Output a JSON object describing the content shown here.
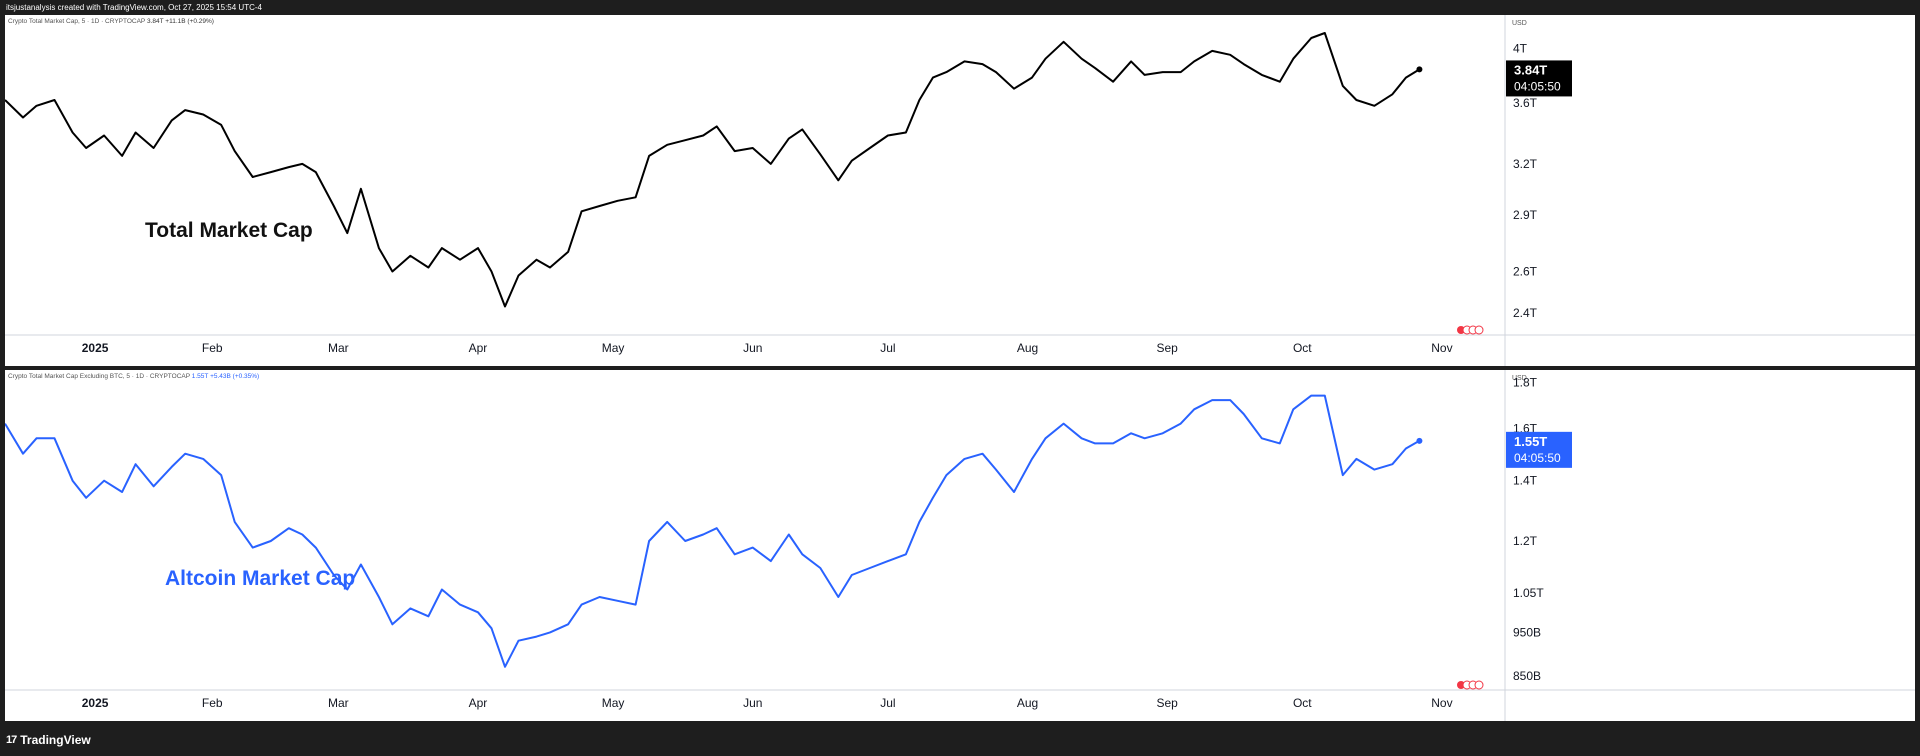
{
  "header": {
    "credit": "itsjustanalysis created with TradingView.com, Oct 27, 2025 15:54 UTC-4"
  },
  "footer": {
    "brand": "TradingView",
    "logo_icon": "tradingview-logo-icon"
  },
  "currency": "USD",
  "x_axis_labels": [
    "2025",
    "Feb",
    "Mar",
    "Apr",
    "May",
    "Jun",
    "Jul",
    "Aug",
    "Sep",
    "Oct",
    "Nov"
  ],
  "chart_data": [
    {
      "type": "line",
      "legend": "Crypto Total Market Cap, 5 · 1D · CRYPTOCAP",
      "legend_values": "3.84T +11.1B (+0.29%)",
      "annotation": "Total Market Cap",
      "line_color": "#000000",
      "price_label": "3.84T",
      "countdown": "04:05:50",
      "y_tick_labels": [
        "4T",
        "3.6T",
        "3.2T",
        "2.9T",
        "2.6T",
        "2.4T"
      ],
      "y_tick_values": [
        4.0,
        3.6,
        3.2,
        2.9,
        2.6,
        2.4
      ],
      "y_scale": "log",
      "ylim": [
        2.3,
        4.2
      ],
      "series": [
        {
          "x": [
            "2024-12-17",
            "2024-12-21",
            "2024-12-24",
            "2024-12-28",
            "2025-01-01",
            "2025-01-04",
            "2025-01-08",
            "2025-01-12",
            "2025-01-15",
            "2025-01-19",
            "2025-01-23",
            "2025-01-26",
            "2025-01-30",
            "2025-02-03",
            "2025-02-06",
            "2025-02-10",
            "2025-02-14",
            "2025-02-18",
            "2025-02-21",
            "2025-02-24",
            "2025-02-28",
            "2025-03-03",
            "2025-03-06",
            "2025-03-10",
            "2025-03-13",
            "2025-03-17",
            "2025-03-21",
            "2025-03-24",
            "2025-03-28",
            "2025-04-01",
            "2025-04-04",
            "2025-04-07",
            "2025-04-10",
            "2025-04-14",
            "2025-04-17",
            "2025-04-21",
            "2025-04-24",
            "2025-04-28",
            "2025-05-02",
            "2025-05-06",
            "2025-05-09",
            "2025-05-13",
            "2025-05-17",
            "2025-05-21",
            "2025-05-24",
            "2025-05-28",
            "2025-06-01",
            "2025-06-05",
            "2025-06-09",
            "2025-06-12",
            "2025-06-16",
            "2025-06-20",
            "2025-06-23",
            "2025-06-27",
            "2025-07-01",
            "2025-07-05",
            "2025-07-08",
            "2025-07-11",
            "2025-07-14",
            "2025-07-18",
            "2025-07-22",
            "2025-07-25",
            "2025-07-29",
            "2025-08-02",
            "2025-08-05",
            "2025-08-09",
            "2025-08-13",
            "2025-08-16",
            "2025-08-20",
            "2025-08-24",
            "2025-08-27",
            "2025-08-31",
            "2025-09-04",
            "2025-09-07",
            "2025-09-11",
            "2025-09-15",
            "2025-09-18",
            "2025-09-22",
            "2025-09-26",
            "2025-09-29",
            "2025-10-03",
            "2025-10-06",
            "2025-10-10",
            "2025-10-13",
            "2025-10-17",
            "2025-10-21",
            "2025-10-24",
            "2025-10-27"
          ],
          "values": [
            3.62,
            3.5,
            3.58,
            3.62,
            3.4,
            3.3,
            3.38,
            3.25,
            3.4,
            3.3,
            3.48,
            3.55,
            3.52,
            3.45,
            3.28,
            3.12,
            3.15,
            3.18,
            3.2,
            3.15,
            2.95,
            2.8,
            3.05,
            2.72,
            2.6,
            2.68,
            2.62,
            2.72,
            2.66,
            2.72,
            2.6,
            2.43,
            2.58,
            2.66,
            2.62,
            2.7,
            2.92,
            2.95,
            2.98,
            3.0,
            3.25,
            3.32,
            3.35,
            3.38,
            3.44,
            3.28,
            3.3,
            3.2,
            3.36,
            3.42,
            3.26,
            3.1,
            3.22,
            3.3,
            3.38,
            3.4,
            3.62,
            3.78,
            3.82,
            3.9,
            3.88,
            3.82,
            3.7,
            3.78,
            3.92,
            4.05,
            3.92,
            3.85,
            3.75,
            3.9,
            3.8,
            3.82,
            3.82,
            3.9,
            3.98,
            3.95,
            3.88,
            3.8,
            3.75,
            3.92,
            4.08,
            4.12,
            3.72,
            3.62,
            3.58,
            3.66,
            3.78,
            3.84
          ]
        }
      ]
    },
    {
      "type": "line",
      "legend": "Crypto Total Market Cap Excluding BTC, 5 · 1D · CRYPTOCAP",
      "legend_values": "1.55T +5.43B (+0.35%)",
      "annotation": "Altcoin Market Cap",
      "line_color": "#2962ff",
      "price_label": "1.55T",
      "countdown": "04:05:50",
      "y_tick_labels": [
        "1.8T",
        "1.6T",
        "1.4T",
        "1.2T",
        "1.05T",
        "950B",
        "850B"
      ],
      "y_tick_values": [
        1.8,
        1.6,
        1.4,
        1.2,
        1.05,
        0.95,
        0.85
      ],
      "y_scale": "log",
      "ylim": [
        0.82,
        1.82
      ],
      "series": [
        {
          "x": [
            "2024-12-17",
            "2024-12-21",
            "2024-12-24",
            "2024-12-28",
            "2025-01-01",
            "2025-01-04",
            "2025-01-08",
            "2025-01-12",
            "2025-01-15",
            "2025-01-19",
            "2025-01-23",
            "2025-01-26",
            "2025-01-30",
            "2025-02-03",
            "2025-02-06",
            "2025-02-10",
            "2025-02-14",
            "2025-02-18",
            "2025-02-21",
            "2025-02-24",
            "2025-02-28",
            "2025-03-03",
            "2025-03-06",
            "2025-03-10",
            "2025-03-13",
            "2025-03-17",
            "2025-03-21",
            "2025-03-24",
            "2025-03-28",
            "2025-04-01",
            "2025-04-04",
            "2025-04-07",
            "2025-04-10",
            "2025-04-14",
            "2025-04-17",
            "2025-04-21",
            "2025-04-24",
            "2025-04-28",
            "2025-05-02",
            "2025-05-06",
            "2025-05-09",
            "2025-05-13",
            "2025-05-17",
            "2025-05-21",
            "2025-05-24",
            "2025-05-28",
            "2025-06-01",
            "2025-06-05",
            "2025-06-09",
            "2025-06-12",
            "2025-06-16",
            "2025-06-20",
            "2025-06-23",
            "2025-06-27",
            "2025-07-01",
            "2025-07-05",
            "2025-07-08",
            "2025-07-11",
            "2025-07-14",
            "2025-07-18",
            "2025-07-22",
            "2025-07-25",
            "2025-07-29",
            "2025-08-02",
            "2025-08-05",
            "2025-08-09",
            "2025-08-13",
            "2025-08-16",
            "2025-08-20",
            "2025-08-24",
            "2025-08-27",
            "2025-08-31",
            "2025-09-04",
            "2025-09-07",
            "2025-09-11",
            "2025-09-15",
            "2025-09-18",
            "2025-09-22",
            "2025-09-26",
            "2025-09-29",
            "2025-10-03",
            "2025-10-06",
            "2025-10-10",
            "2025-10-13",
            "2025-10-17",
            "2025-10-21",
            "2025-10-24",
            "2025-10-27"
          ],
          "values": [
            1.62,
            1.5,
            1.56,
            1.56,
            1.4,
            1.34,
            1.4,
            1.36,
            1.46,
            1.38,
            1.45,
            1.5,
            1.48,
            1.42,
            1.26,
            1.18,
            1.2,
            1.24,
            1.22,
            1.18,
            1.1,
            1.06,
            1.13,
            1.04,
            0.97,
            1.01,
            0.99,
            1.06,
            1.02,
            1.0,
            0.96,
            0.87,
            0.93,
            0.94,
            0.95,
            0.97,
            1.02,
            1.04,
            1.03,
            1.02,
            1.2,
            1.26,
            1.2,
            1.22,
            1.24,
            1.16,
            1.18,
            1.14,
            1.22,
            1.16,
            1.12,
            1.04,
            1.1,
            1.12,
            1.14,
            1.16,
            1.26,
            1.34,
            1.42,
            1.48,
            1.5,
            1.44,
            1.36,
            1.48,
            1.56,
            1.62,
            1.56,
            1.54,
            1.54,
            1.58,
            1.56,
            1.58,
            1.62,
            1.68,
            1.72,
            1.72,
            1.66,
            1.56,
            1.54,
            1.68,
            1.74,
            1.74,
            1.42,
            1.48,
            1.44,
            1.46,
            1.52,
            1.55
          ]
        }
      ]
    }
  ]
}
